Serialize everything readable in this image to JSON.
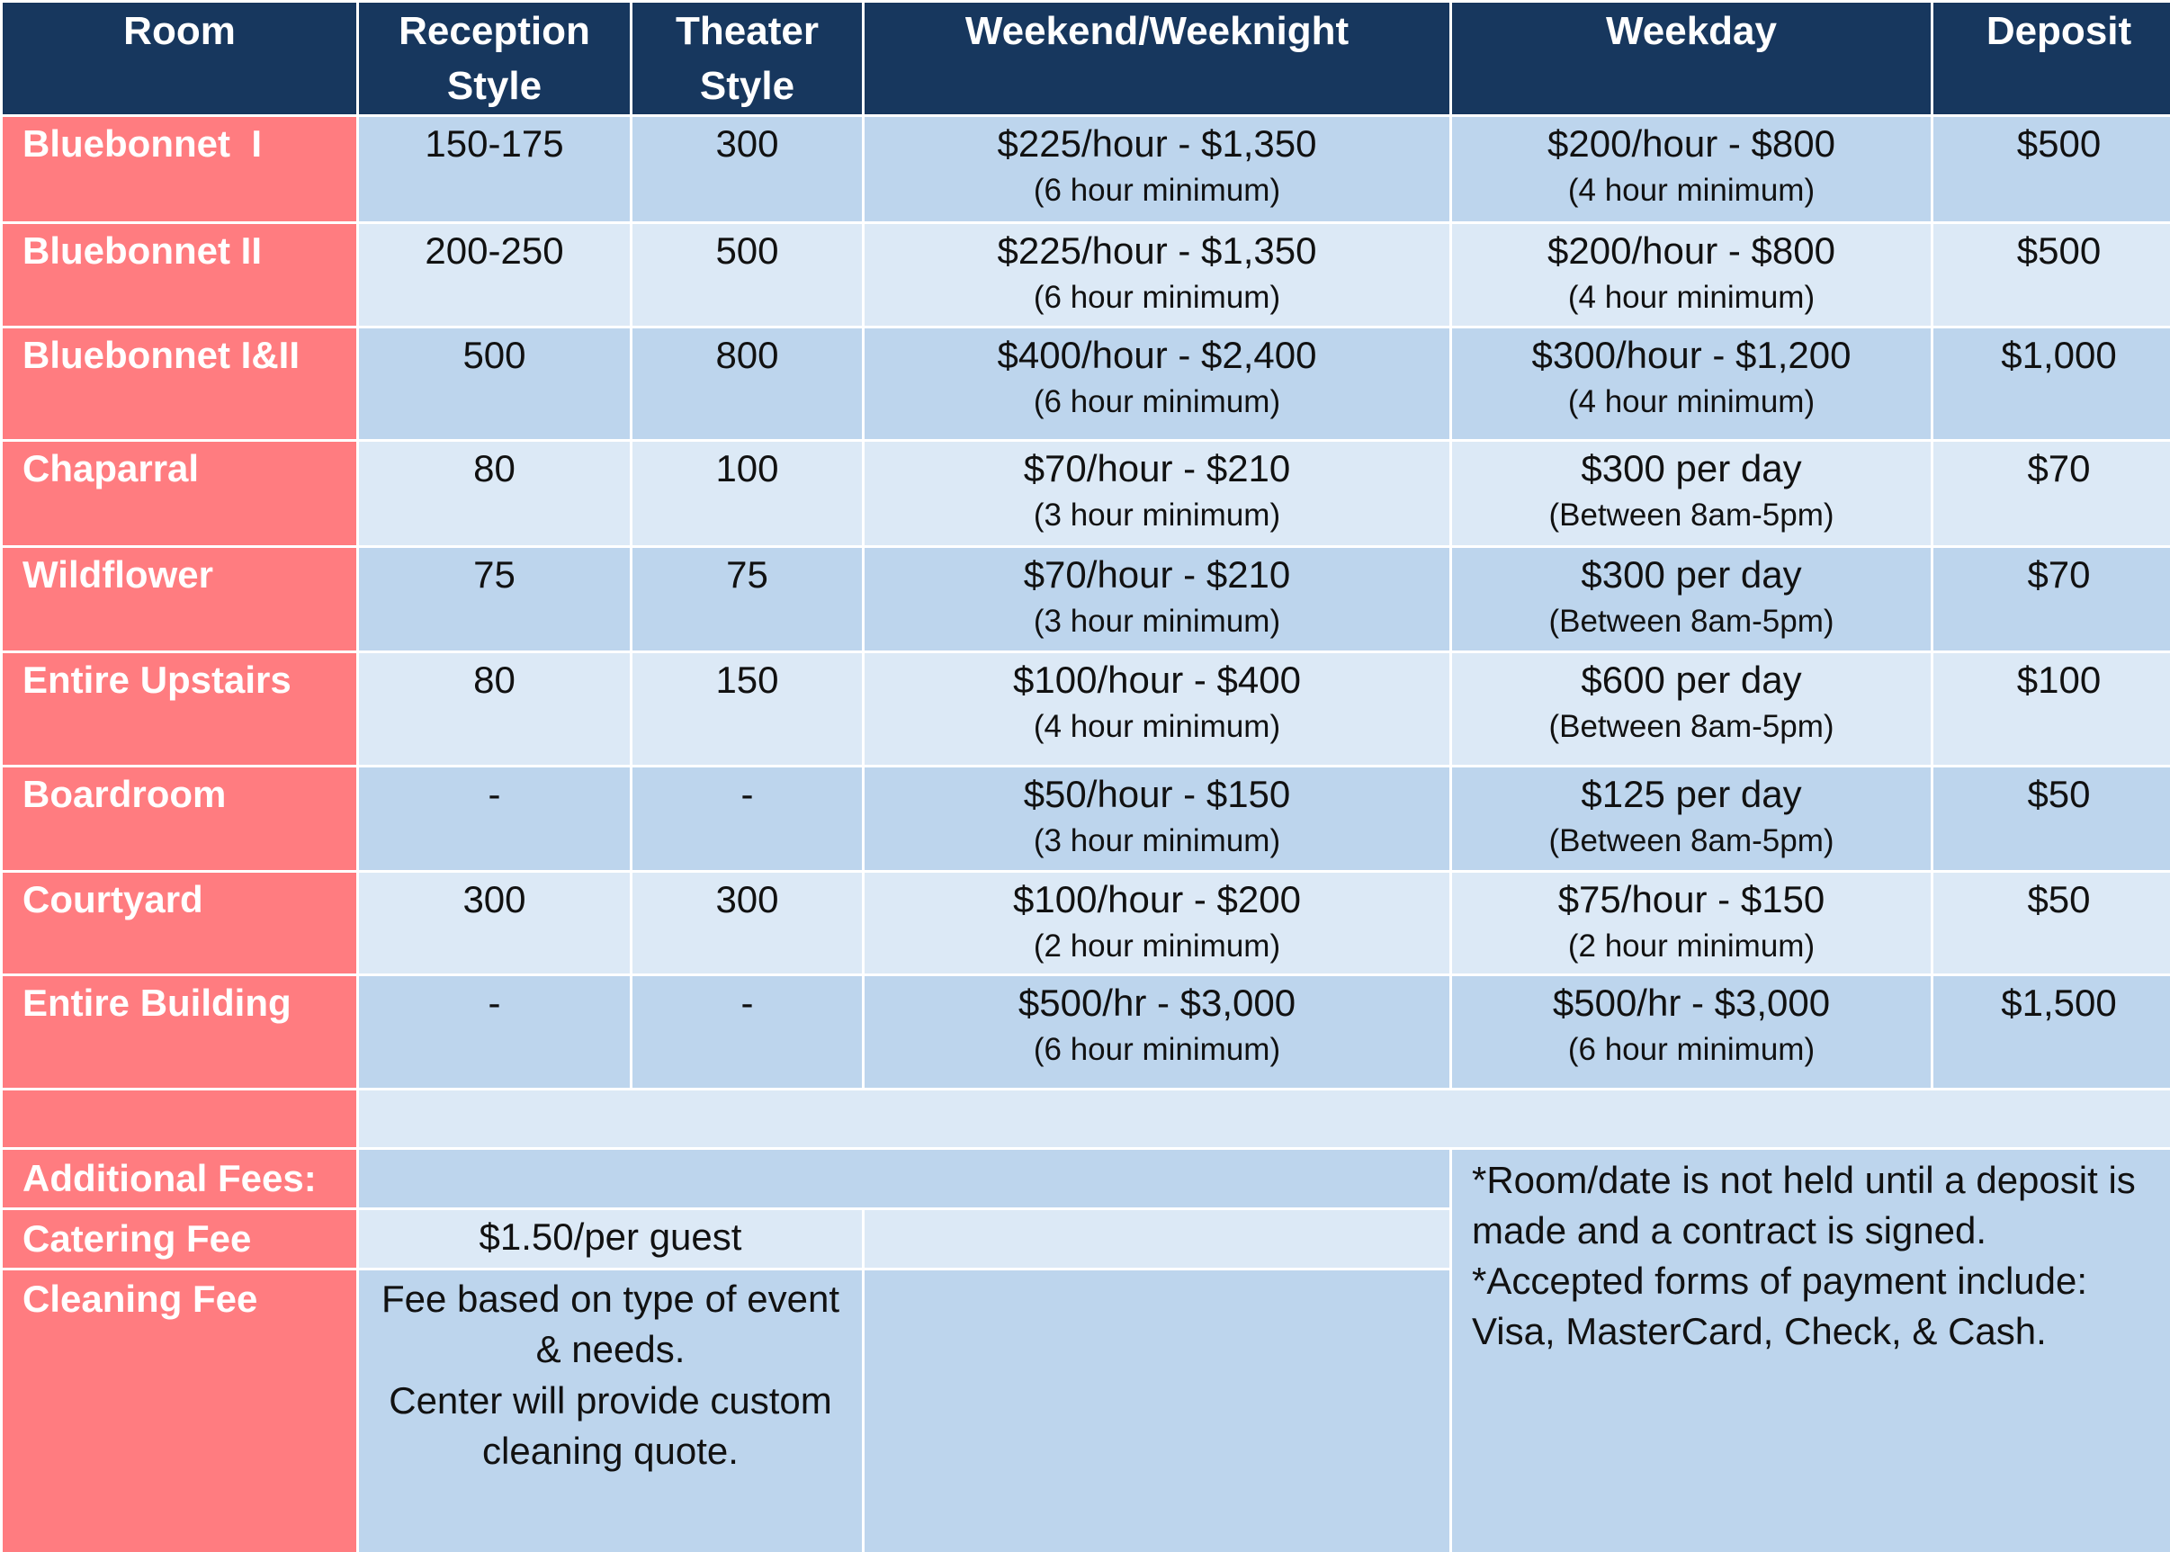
{
  "headers": [
    "Room",
    "Reception Style",
    "Theater Style",
    "Weekend/Weeknight",
    "Weekday",
    "Deposit"
  ],
  "header_lines": {
    "reception": [
      "Reception",
      "Style"
    ],
    "theater": [
      "Theater",
      "Style"
    ]
  },
  "rooms": [
    {
      "name": "Bluebonnet  I",
      "reception": "150-175",
      "theater": "300",
      "weekend_rate": "$225/hour - $1,350",
      "weekend_note": "(6 hour minimum)",
      "weekday_rate": "$200/hour - $800",
      "weekday_note": "(4 hour minimum)",
      "deposit": "$500"
    },
    {
      "name": "Bluebonnet II",
      "reception": "200-250",
      "theater": "500",
      "weekend_rate": "$225/hour - $1,350",
      "weekend_note": "(6 hour minimum)",
      "weekday_rate": "$200/hour - $800",
      "weekday_note": "(4 hour minimum)",
      "deposit": "$500"
    },
    {
      "name": "Bluebonnet I&II",
      "reception": "500",
      "theater": "800",
      "weekend_rate": "$400/hour - $2,400",
      "weekend_note": "(6 hour minimum)",
      "weekday_rate": "$300/hour - $1,200",
      "weekday_note": "(4 hour minimum)",
      "deposit": "$1,000"
    },
    {
      "name": "Chaparral",
      "reception": "80",
      "theater": "100",
      "weekend_rate": "$70/hour - $210",
      "weekend_note": "(3 hour minimum)",
      "weekday_rate": "$300 per day",
      "weekday_note": "(Between 8am-5pm)",
      "deposit": "$70"
    },
    {
      "name": "Wildflower",
      "reception": "75",
      "theater": "75",
      "weekend_rate": "$70/hour - $210",
      "weekend_note": "(3 hour minimum)",
      "weekday_rate": "$300 per day",
      "weekday_note": "(Between 8am-5pm)",
      "deposit": "$70"
    },
    {
      "name": "Entire Upstairs",
      "reception": "80",
      "theater": "150",
      "weekend_rate": "$100/hour - $400",
      "weekend_note": "(4 hour minimum)",
      "weekday_rate": "$600 per day",
      "weekday_note": "(Between 8am-5pm)",
      "deposit": "$100"
    },
    {
      "name": "Boardroom",
      "reception": "-",
      "theater": "-",
      "weekend_rate": "$50/hour - $150",
      "weekend_note": "(3 hour minimum)",
      "weekday_rate": "$125 per day",
      "weekday_note": "(Between 8am-5pm)",
      "deposit": "$50"
    },
    {
      "name": "Courtyard",
      "reception": "300",
      "theater": "300",
      "weekend_rate": "$100/hour - $200",
      "weekend_note": "(2 hour minimum)",
      "weekday_rate": "$75/hour - $150",
      "weekday_note": "(2 hour minimum)",
      "deposit": "$50"
    },
    {
      "name": "Entire Building",
      "reception": "-",
      "theater": "-",
      "weekend_rate": "$500/hr - $3,000",
      "weekend_note": "(6 hour minimum)",
      "weekday_rate": "$500/hr - $3,000",
      "weekday_note": "(6 hour minimum)",
      "deposit": "$1,500"
    }
  ],
  "fees": {
    "section_label": "Additional Fees:",
    "catering_label": "Catering Fee",
    "catering_value": "$1.50/per guest",
    "cleaning_label": "Cleaning Fee",
    "cleaning_lines": [
      "Fee based on type of event",
      "& needs.",
      "Center will provide custom",
      "cleaning quote."
    ]
  },
  "notes": [
    "*Room/date is not held until a deposit is",
    "made and a contract is signed.",
    "*Accepted forms of payment include:",
    "Visa, MasterCard, Check, & Cash."
  ],
  "colors": {
    "header": "#17375e",
    "room_column": "#ff7c80",
    "row_dark": "#bdd5ed",
    "row_light": "#dce9f6"
  }
}
